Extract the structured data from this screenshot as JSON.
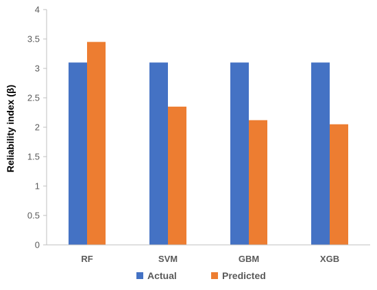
{
  "chart_data": {
    "type": "bar",
    "title": "",
    "xlabel": "",
    "ylabel": "Reliability index (β)",
    "categories": [
      "RF",
      "SVM",
      "GBM",
      "XGB"
    ],
    "series": [
      {
        "name": "Actual",
        "values": [
          3.1,
          3.1,
          3.1,
          3.1
        ],
        "color": "#4472C4"
      },
      {
        "name": "Predicted",
        "values": [
          3.45,
          2.35,
          2.12,
          2.05
        ],
        "color": "#ED7D31"
      }
    ],
    "ylim": [
      0,
      4
    ],
    "yticks": [
      "0",
      "0.5",
      "1",
      "1.5",
      "2",
      "2.5",
      "3",
      "3.5",
      "4"
    ],
    "grid": false,
    "legend_position": "bottom"
  }
}
